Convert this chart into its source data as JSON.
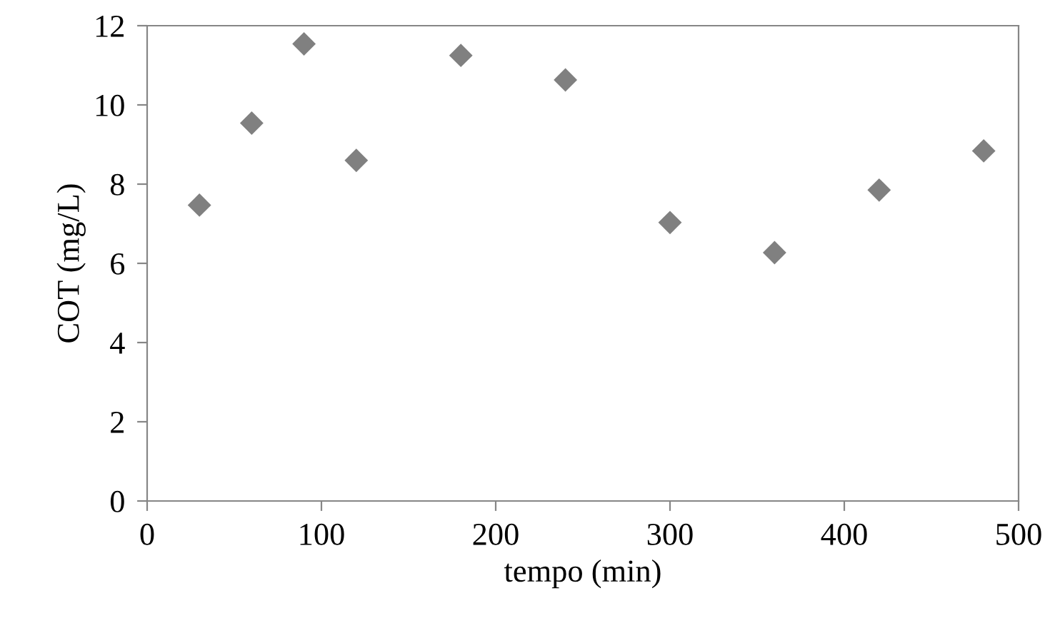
{
  "chart_data": {
    "type": "scatter",
    "xlabel": "tempo (min)",
    "ylabel": "COT (mg/L)",
    "x": [
      30,
      60,
      90,
      120,
      180,
      240,
      300,
      360,
      420,
      480
    ],
    "series": [
      {
        "color": "#808080",
        "values": [
          7.47,
          9.54,
          11.54,
          8.6,
          11.25,
          10.63,
          7.03,
          6.27,
          7.85,
          8.84
        ]
      }
    ],
    "xlim": [
      0,
      500
    ],
    "xticks": [
      0,
      100,
      200,
      300,
      400,
      500
    ],
    "ylim": [
      0,
      12
    ],
    "yticks": [
      0,
      2,
      4,
      6,
      8,
      10,
      12
    ],
    "marker": "diamond",
    "grid": false,
    "legend": false
  }
}
